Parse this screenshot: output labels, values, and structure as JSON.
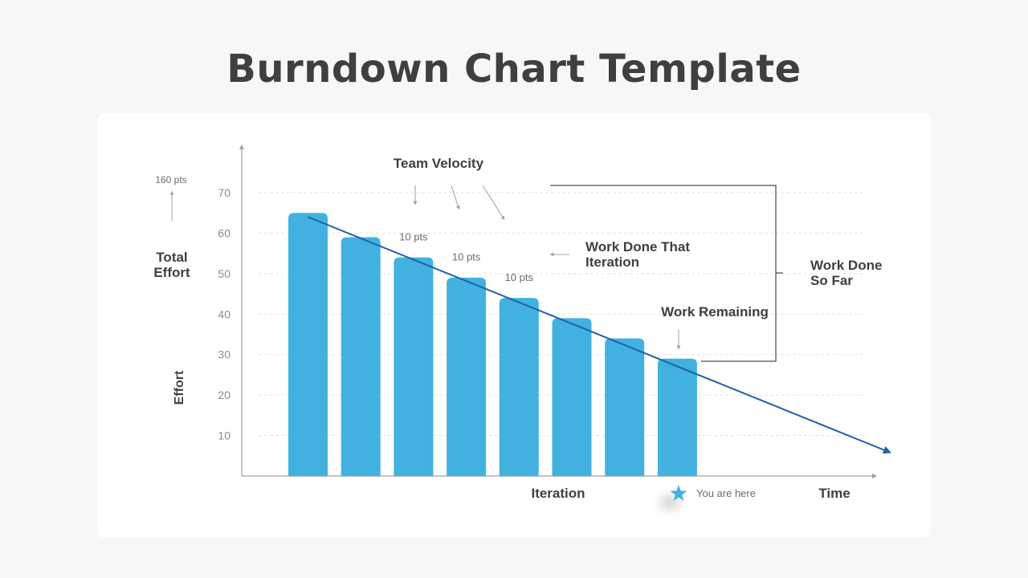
{
  "title": "Burndown Chart Template",
  "colors": {
    "bar": "#41b2df",
    "trend": "#1f5fa8",
    "axis": "#a0a0a0",
    "grid": "#e3e3e3",
    "text_dark": "#3f3f3f",
    "text_light": "#6b6b6b",
    "star": "#41b2df"
  },
  "labels": {
    "total_effort_value": "160 pts",
    "total_effort_line1": "Total",
    "total_effort_line2": "Effort",
    "team_velocity": "Team Velocity",
    "work_done_iteration_line1": "Work Done That",
    "work_done_iteration_line2": "Iteration",
    "work_done_so_far_line1": "Work Done",
    "work_done_so_far_line2": "So Far",
    "work_remaining": "Work Remaining",
    "you_are_here": "You are here"
  },
  "chart_data": {
    "type": "bar",
    "title": "",
    "xlabel": "Iteration",
    "x_end_label": "Time",
    "ylabel": "Effort",
    "ylim": [
      0,
      70
    ],
    "yticks": [
      10,
      20,
      30,
      40,
      50,
      60,
      70
    ],
    "grid": true,
    "values": [
      65,
      59,
      54,
      49,
      44,
      39,
      34,
      29
    ],
    "trend_line": {
      "from": [
        1,
        64
      ],
      "to": [
        12,
        6
      ]
    },
    "velocity_labels": [
      {
        "after_bar": 3,
        "text": "10 pts"
      },
      {
        "after_bar": 4,
        "text": "10 pts"
      },
      {
        "after_bar": 5,
        "text": "10 pts"
      }
    ]
  }
}
